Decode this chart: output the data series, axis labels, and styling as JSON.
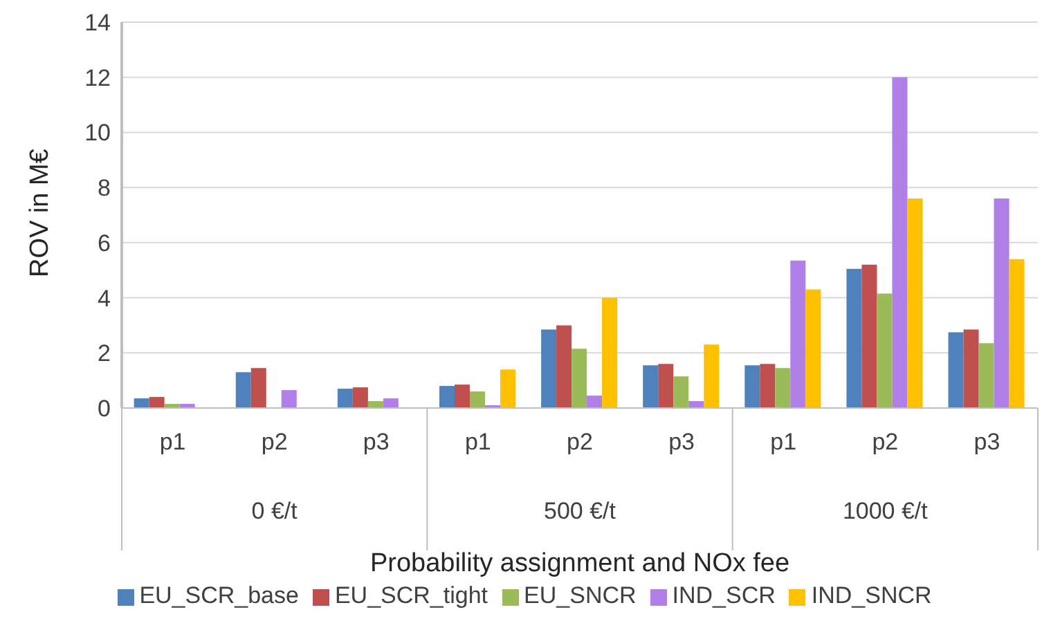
{
  "chart_data": {
    "type": "bar",
    "xlabel": "Probability assignment and NOx fee",
    "ylabel": "ROV in M€",
    "categories": [
      "p1",
      "p2",
      "p3",
      "p1",
      "p2",
      "p3",
      "p1",
      "p2",
      "p3"
    ],
    "annotations": [
      "0 €/t",
      "500 €/t",
      "1000 €/t"
    ],
    "series": [
      {
        "name": "EU_SCR_base",
        "color": "#4f81bd",
        "values": [
          0.35,
          1.3,
          0.7,
          0.8,
          2.85,
          1.55,
          1.55,
          5.05,
          2.75
        ]
      },
      {
        "name": "EU_SCR_tight",
        "color": "#c0504d",
        "values": [
          0.4,
          1.45,
          0.75,
          0.85,
          3.0,
          1.6,
          1.6,
          5.2,
          2.85
        ]
      },
      {
        "name": "EU_SNCR",
        "color": "#9bbb59",
        "values": [
          0.15,
          0,
          0.25,
          0.6,
          2.15,
          1.15,
          1.45,
          4.15,
          2.35
        ]
      },
      {
        "name": "IND_SCR",
        "color": "#b07fe8",
        "values": [
          0.15,
          0.65,
          0.35,
          0.1,
          0.45,
          0.25,
          5.35,
          12.0,
          7.6
        ]
      },
      {
        "name": "IND_SNCR",
        "color": "#ffc000",
        "values": [
          0,
          0,
          0,
          1.4,
          4.0,
          2.3,
          4.3,
          7.6,
          5.4
        ]
      }
    ],
    "ylim": [
      0,
      14
    ],
    "yticks": [
      0,
      2,
      4,
      6,
      8,
      10,
      12,
      14
    ],
    "grid": "y",
    "legend": "bottom"
  }
}
